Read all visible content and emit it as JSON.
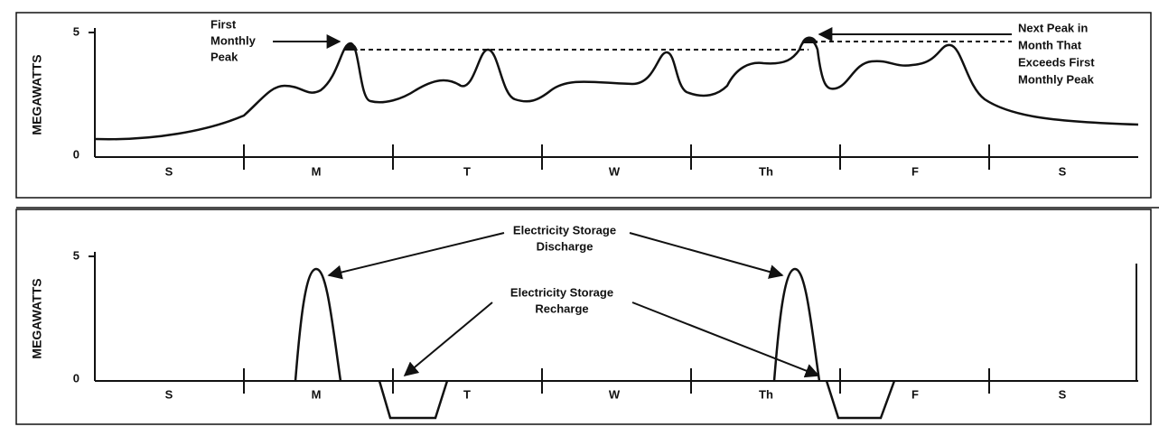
{
  "top_panel": {
    "y_axis_label": "MEGAWATTS",
    "y_ticks": [
      "5",
      "0"
    ],
    "days": [
      "S",
      "M",
      "T",
      "W",
      "Th",
      "F",
      "S"
    ],
    "annotation_left": [
      "First",
      "Monthly",
      "Peak"
    ],
    "annotation_right": [
      "Next Peak in",
      "Month That",
      "Exceeds First",
      "Monthly Peak"
    ]
  },
  "bottom_panel": {
    "y_axis_label": "MEGAWATTS",
    "y_ticks": [
      "5",
      "0"
    ],
    "days": [
      "S",
      "M",
      "T",
      "W",
      "Th",
      "F",
      "S"
    ],
    "discharge_label": [
      "Electricity Storage",
      "Discharge"
    ],
    "recharge_label": [
      "Electricity Storage",
      "Recharge"
    ]
  }
}
